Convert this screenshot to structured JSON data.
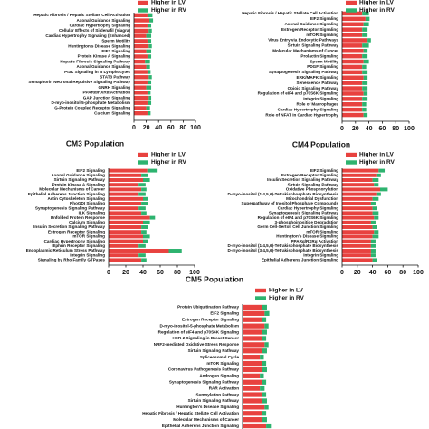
{
  "chart_data": [
    {
      "type": "bar",
      "orientation": "horizontal",
      "stacked": true,
      "legend": "top-right",
      "categories": [
        "Hepatic Fibrosis / Hepatic Stellate Cell Activation",
        "Axonal Guidance Signaling",
        "Cardiac Hypertrophy Signaling",
        "Cellular Effects of Sildenafil (Viagra)",
        "Cardiac Hypertrophy Signaling (Enhanced)",
        "Sperm Motility",
        "Huntington's Disease Signaling",
        "EIF2 Signaling",
        "Protein Kinase A Signaling",
        "Hepatic Fibrosis Signaling Pathway",
        "Axonal Guidance Signaling",
        "PI3K Signaling in B Lymphocytes",
        "STAT3 Pathway",
        "Semaphorin Neuronal Repulsive Signaling Pathway",
        "GNRH Signaling",
        "PPARα/RXRα Activation",
        "GAP Junction Signaling",
        "D-myo-inositol-5-phosphate Metabolism",
        "G-Protein Coupled Receptor Signaling",
        "Calcium Signaling"
      ],
      "series": [
        {
          "name": "Higher in LV",
          "color": "#e8423f",
          "values": [
            22,
            25,
            22,
            24,
            20,
            22,
            24,
            20,
            22,
            18,
            20,
            22,
            24,
            22,
            20,
            22,
            24,
            22,
            20,
            22
          ]
        },
        {
          "name": "Higher in RV",
          "color": "#2db36f",
          "values": [
            8,
            6,
            6,
            5,
            8,
            6,
            5,
            8,
            6,
            8,
            6,
            5,
            5,
            6,
            8,
            5,
            4,
            6,
            6,
            5
          ]
        }
      ],
      "xlim": [
        0,
        100
      ],
      "xticks": [
        0,
        20,
        40,
        60,
        80,
        100
      ]
    },
    {
      "type": "bar",
      "orientation": "horizontal",
      "stacked": true,
      "legend": "top-right",
      "categories": [
        "Hepatic Fibrosis / Hepatic Stellate Cell Activation",
        "EIF2 Signaling",
        "Axonal Guidance Signaling",
        "Estrogen Receptor Signaling",
        "mTOR Signaling",
        "Virus Entry via Endocytic Pathways",
        "Sirtuin Signaling Pathway",
        "Molecular Mechanisms of Cancer",
        "Prolactin Signaling",
        "Sperm Motility",
        "PDGF Signaling",
        "Synaptogenesis Signaling Pathway",
        "ERK/MAPK Signaling",
        "Senescence Pathway",
        "Opioid Signaling Pathway",
        "Regulation of eIF4 and p70S6K Signaling",
        "Integrin Signaling",
        "Role of Macrophages",
        "Cardiac Hypertrophy Signaling",
        "Role of NFAT in Cardiac Hypertrophy"
      ],
      "series": [
        {
          "name": "Higher in LV",
          "color": "#e8423f",
          "values": [
            30,
            35,
            32,
            30,
            30,
            38,
            30,
            32,
            30,
            32,
            30,
            30,
            32,
            30,
            30,
            32,
            30,
            30,
            30,
            32
          ]
        },
        {
          "name": "Higher in RV",
          "color": "#2db36f",
          "values": [
            10,
            6,
            8,
            8,
            8,
            5,
            10,
            6,
            8,
            8,
            6,
            8,
            6,
            8,
            8,
            6,
            8,
            6,
            6,
            6
          ]
        }
      ],
      "xlim": [
        0,
        100
      ],
      "xticks": [
        0,
        20,
        40,
        60,
        80,
        100
      ]
    },
    {
      "type": "bar",
      "orientation": "horizontal",
      "stacked": true,
      "legend": "top-right",
      "title": "CM3 Population",
      "categories": [
        "EIF2 Signaling",
        "Axonal Guidance Signaling",
        "Sirtuin Signaling Pathway",
        "Protein Kinase A Signaling",
        "Molecular Mechanisms of Cancer",
        "Epithelial Adherens Junction Signaling",
        "Actin Cytoskeleton Signaling",
        "RhoGDI Signaling",
        "Synaptogenesis Signaling Pathway",
        "ILK Signaling",
        "Unfolded Protein Response",
        "Calcium Signaling",
        "Insulin Secretion Signaling Pathway",
        "Estrogen Receptor Signaling",
        "mTOR Signaling",
        "Cardiac Hypertrophy Signaling",
        "Ephrin Receptor Signaling",
        "Endoplasmic Reticulum Stress Pathway",
        "Integrin Signaling",
        "Signaling by Rho Family GTPases"
      ],
      "series": [
        {
          "name": "Higher in LV",
          "color": "#e8423f",
          "values": [
            45,
            38,
            40,
            35,
            38,
            35,
            40,
            38,
            35,
            38,
            48,
            40,
            38,
            38,
            40,
            40,
            35,
            70,
            35,
            38
          ]
        },
        {
          "name": "Higher in RV",
          "color": "#2db36f",
          "values": [
            12,
            8,
            8,
            8,
            6,
            8,
            6,
            8,
            8,
            6,
            6,
            8,
            8,
            6,
            8,
            6,
            8,
            15,
            8,
            6
          ]
        }
      ],
      "xlim": [
        0,
        100
      ],
      "xticks": [
        0,
        20,
        40,
        60,
        80,
        100
      ]
    },
    {
      "type": "bar",
      "orientation": "horizontal",
      "stacked": true,
      "legend": "top-right",
      "title": "CM4 Population",
      "categories": [
        "EIF2 Signaling",
        "Estrogen Receptor Signaling",
        "Insulin Secretion Signaling Pathway",
        "Sirtuin Signaling Pathway",
        "Oxidative Phosphorylation",
        "D-myo-inositol (1,4,5,6)-Tetrakisphosphate Biosynthesis",
        "Mitochondrial Dysfunction",
        "Superpathway of Inositol Phosphate Compounds",
        "Cardiac Hypertrophy Signaling",
        "Synaptogenesis Signaling Pathway",
        "Regulation of eIF4 and p70S6K Signaling",
        "3-phosphoinositide Degradation",
        "Germ Cell-Sertoli Cell Junction Signaling",
        "mTOR Signaling",
        "Huntington's Disease Signaling",
        "PPARα/RXRα Activation",
        "D-myo-inositol (1,4,5,6)-Tetrakisphosphate Biosynthesis",
        "D-myo-inositol (3,4,5,6)-Tetrakisphosphate Biosynthesis",
        "Integrin Signaling",
        "Epithelial Adherens Junction Signaling"
      ],
      "series": [
        {
          "name": "Higher in LV",
          "color": "#e8423f",
          "values": [
            48,
            45,
            40,
            42,
            50,
            45,
            40,
            38,
            40,
            40,
            42,
            38,
            40,
            42,
            40,
            38,
            38,
            38,
            38,
            40
          ]
        },
        {
          "name": "Higher in RV",
          "color": "#2db36f",
          "values": [
            8,
            6,
            8,
            6,
            10,
            6,
            8,
            6,
            6,
            8,
            6,
            6,
            6,
            6,
            8,
            6,
            6,
            6,
            6,
            6
          ]
        }
      ],
      "xlim": [
        0,
        100
      ],
      "xticks": [
        0,
        20,
        40,
        60,
        80,
        100
      ]
    },
    {
      "type": "bar",
      "orientation": "horizontal",
      "stacked": true,
      "legend": "top-right",
      "title": "CM5 Population",
      "categories": [
        "Protein Ubiquitination Pathway",
        "EIF2 Signaling",
        "Estrogen Receptor Signaling",
        "D-myo-inositol-5-phosphate Metabolism",
        "Regulation of eIF4 and p70S6K Signaling",
        "HER-2 Signaling in Breast Cancer",
        "NRF2-mediated Oxidative Stress Response",
        "Sirtuin Signaling Pathway",
        "Spliceosomal Cycle",
        "mTOR Signaling",
        "Coronavirus Pathogenesis Pathway",
        "Androgen Signaling",
        "Synaptogenesis Signaling Pathway",
        "RAR Activation",
        "Sumoylation Pathway",
        "Sirtuin Signaling Pathway",
        "Huntington's Disease Signaling",
        "Hepatic Fibrosis / Hepatic Stellate Cell Activation",
        "Molecular Mechanisms of Cancer",
        "Epithelial Adherens Junction Signaling"
      ],
      "series": [
        {
          "name": "Higher in LV",
          "color": "#e8423f",
          "values": [
            25,
            28,
            25,
            28,
            25,
            25,
            28,
            25,
            22,
            25,
            25,
            22,
            25,
            22,
            25,
            25,
            28,
            25,
            25,
            30
          ]
        },
        {
          "name": "Higher in RV",
          "color": "#2db36f",
          "values": [
            6,
            6,
            5,
            5,
            6,
            5,
            5,
            6,
            5,
            5,
            6,
            5,
            5,
            6,
            5,
            6,
            5,
            5,
            6,
            6
          ]
        }
      ],
      "xlim": [
        0,
        100
      ]
    }
  ]
}
